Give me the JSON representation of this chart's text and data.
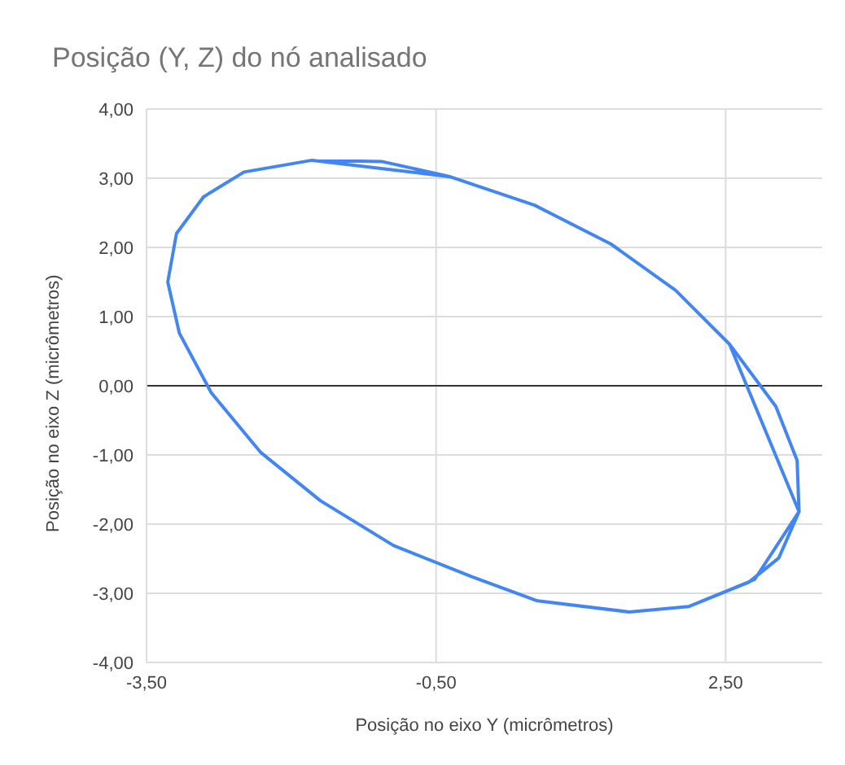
{
  "chart_data": {
    "type": "line",
    "title": "Posição (Y, Z) do nó analisado",
    "xlabel": "Posição no eixo Y (micrômetros)",
    "ylabel": "Posição no eixo Z (micrômetros)",
    "series": [
      {
        "color": "#4285f4",
        "x": [
          2.54,
          3.02,
          3.24,
          3.26,
          3.05,
          2.74,
          2.12,
          1.5,
          0.55,
          -0.13,
          -0.94,
          -1.7,
          -2.32,
          -2.83,
          -3.16,
          -3.28,
          -3.19,
          -2.91,
          -2.49,
          -1.785,
          -1.055,
          -0.35,
          0.52,
          1.31,
          1.98,
          2.54,
          3.26,
          2.8,
          2.12,
          1.5,
          0.55,
          -0.13,
          -0.94,
          -1.7,
          -2.32,
          -2.83,
          -3.16,
          -3.28,
          -3.19,
          -2.91,
          -2.49,
          -1.785,
          -0.35
        ],
        "values": [
          0.6,
          -0.3,
          -1.08,
          -1.82,
          -2.49,
          -2.84,
          -3.19,
          -3.27,
          -3.11,
          -2.76,
          -2.31,
          -1.66,
          -0.96,
          -0.1,
          0.76,
          1.5,
          2.2,
          2.73,
          3.09,
          3.26,
          3.24,
          3.02,
          2.61,
          2.05,
          1.38,
          0.6,
          -1.82,
          -2.8,
          -3.19,
          -3.27,
          -3.11,
          -2.76,
          -2.31,
          -1.66,
          -0.96,
          -0.1,
          0.76,
          1.5,
          2.2,
          2.73,
          3.09,
          3.26,
          3.02
        ]
      }
    ],
    "xlim": [
      -3.5,
      3.5
    ],
    "xticks": [
      {
        "value": -3.5,
        "label": "-3,50"
      },
      {
        "value": -0.5,
        "label": "-0,50"
      },
      {
        "value": 2.5,
        "label": "2,50"
      }
    ],
    "ylim": [
      -4,
      4
    ],
    "yticks": [
      {
        "value": -4,
        "label": "-4,00"
      },
      {
        "value": -3,
        "label": "-3,00"
      },
      {
        "value": -2,
        "label": "-2,00"
      },
      {
        "value": -1,
        "label": "-1,00"
      },
      {
        "value": 0,
        "label": "0,00"
      },
      {
        "value": 1,
        "label": "1,00"
      },
      {
        "value": 2,
        "label": "2,00"
      },
      {
        "value": 3,
        "label": "3,00"
      },
      {
        "value": 4,
        "label": "4,00"
      }
    ],
    "ref_lines": [
      {
        "axis": "y",
        "value": 0,
        "color": "#333333"
      }
    ],
    "grid": true,
    "marker": "none",
    "line_style": "solid"
  }
}
